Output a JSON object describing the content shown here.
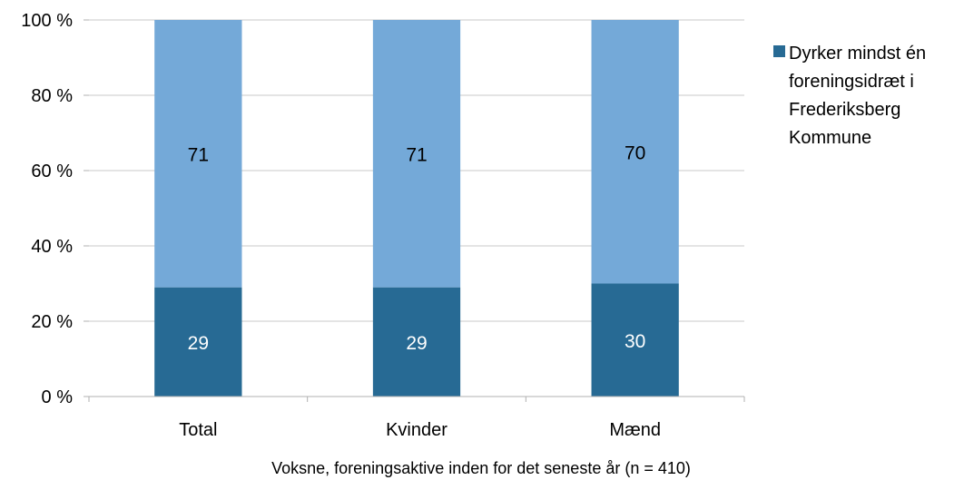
{
  "chart_data": {
    "type": "bar",
    "stacked": true,
    "categories": [
      "Total",
      "Kvinder",
      "Mænd"
    ],
    "series": [
      {
        "name": "Dyrker mindst én foreningsidræt i Frederiksberg Kommune",
        "values": [
          29,
          29,
          30
        ],
        "labels": [
          "29",
          "29",
          "30"
        ],
        "color": "#276a94",
        "label_color": "#ffffff"
      },
      {
        "name": "",
        "values": [
          71,
          71,
          70
        ],
        "labels": [
          "71",
          "71",
          "70"
        ],
        "color": "#74a9d8",
        "label_color": "#000000"
      }
    ],
    "ylim": [
      0,
      100
    ],
    "yticks": [
      "0 %",
      "20 %",
      "40 %",
      "60 %",
      "80 %",
      "100 %"
    ],
    "xlabel": "Voksne, foreningsaktive inden for det seneste år (n = 410)",
    "ylabel": "",
    "grid": true,
    "legend_position": "right"
  },
  "legend": {
    "label": "Dyrker mindst én foreningsidræt i Frederiksberg Kommune",
    "color": "#276a94"
  }
}
